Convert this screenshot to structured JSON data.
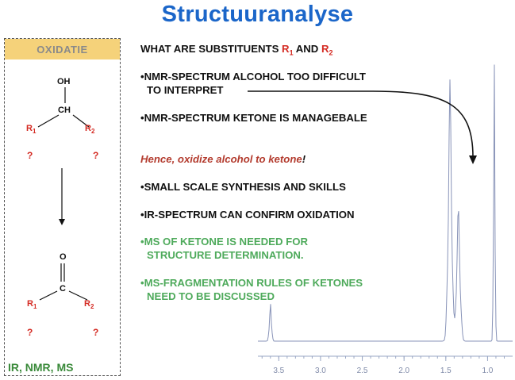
{
  "title": "Structuuranalyse",
  "panel": {
    "header": "OXIDATIE",
    "alcohol": {
      "oh": "OH",
      "ch": "CH",
      "r1": "R",
      "r2": "R",
      "sub1": "1",
      "sub2": "2",
      "q1": "?",
      "q2": "?"
    },
    "ketone": {
      "o": "O",
      "c": "C",
      "r1": "R",
      "r2": "R",
      "sub1": "1",
      "sub2": "2",
      "q1": "?",
      "q2": "?"
    },
    "footer": "IR, NMR, MS"
  },
  "bullets": {
    "l1_pre": "WHAT ARE SUBSTITUENTS ",
    "l1_r1": "R",
    "l1_s1": "1",
    "l1_and": " AND ",
    "l1_r2": "R",
    "l1_s2": "2",
    "l2a": "•NMR-SPECTRUM ALCOHOL TOO DIFFICULT",
    "l2b": "TO INTERPRET",
    "l3": "•NMR-SPECTRUM KETONE IS MANAGEBALE",
    "hence": "Hence, oxidize alcohol to ketone",
    "hence_bang": "!",
    "l4": "•SMALL SCALE SYNTHESIS AND SKILLS",
    "l5": "•IR-SPECTRUM CAN CONFIRM OXIDATION",
    "l6a": "•MS OF KETONE IS NEEDED FOR",
    "l6b": "STRUCTURE DETERMINATION.",
    "l7a": "•MS-FRAGMENTATION RULES OF KETONES",
    "l7b": "NEED TO BE DISCUSSED"
  },
  "spectrum": {
    "ticks": [
      "3.5",
      "3.0",
      "2.5",
      "2.0",
      "1.5",
      "1.0"
    ],
    "tick_values": [
      3.5,
      3.0,
      2.5,
      2.0,
      1.5,
      1.0
    ],
    "axis_range": [
      3.75,
      0.7
    ],
    "peaks_ppm": [
      3.6,
      1.45,
      1.35,
      0.92
    ]
  },
  "colors": {
    "title": "#1b66c9",
    "red": "#d42a22",
    "green": "#4eaa5b",
    "header": "#f5d27a"
  }
}
